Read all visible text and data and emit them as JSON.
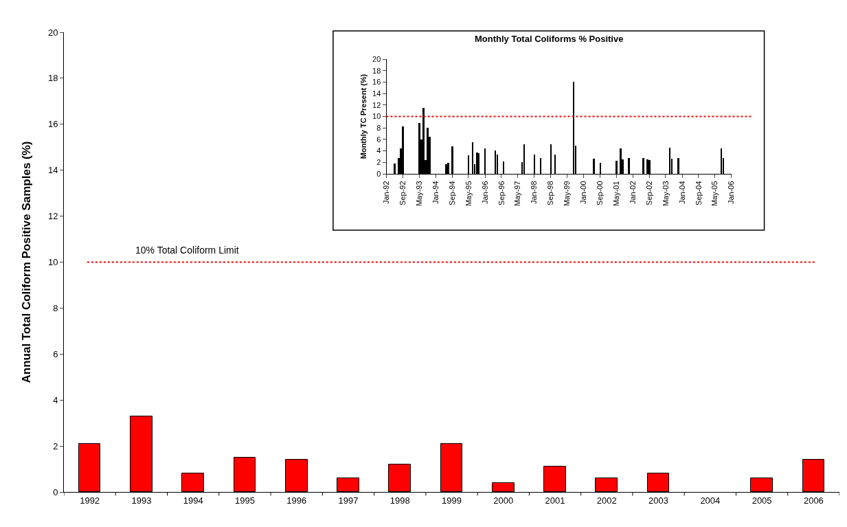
{
  "chart_data": [
    {
      "type": "bar",
      "ylabel": "Annual Total Coliform Positive Samples (%)",
      "categories": [
        "1992",
        "1993",
        "1994",
        "1995",
        "1996",
        "1997",
        "1998",
        "1999",
        "2000",
        "2001",
        "2002",
        "2003",
        "2004",
        "2005",
        "2006"
      ],
      "values": [
        2.1,
        3.3,
        0.8,
        1.5,
        1.4,
        0.6,
        1.2,
        2.1,
        0.4,
        1.1,
        0.6,
        0.8,
        null,
        0.6,
        1.4
      ],
      "color": "#ff0000",
      "ylim": [
        0,
        20
      ],
      "yticks": [
        0,
        2,
        4,
        6,
        8,
        10,
        12,
        14,
        16,
        18,
        20
      ],
      "ref_lines": [
        {
          "axis": "y",
          "value": 10,
          "label": "10% Total Coliform Limit",
          "color": "#ff0000",
          "line_style": "dotted"
        }
      ],
      "grid": false
    },
    {
      "type": "bar",
      "title": "Monthly Total Coliforms % Positive",
      "ylabel": "Monthly TC Present (%)",
      "x": [
        "1992-05",
        "1992-07",
        "1992-08",
        "1992-09",
        "1993-05",
        "1993-06",
        "1993-07",
        "1993-08",
        "1993-09",
        "1993-10",
        "1994-06",
        "1994-07",
        "1994-09",
        "1995-05",
        "1995-07",
        "1995-08",
        "1995-09",
        "1995-10",
        "1996-01",
        "1996-06",
        "1996-07",
        "1996-10",
        "1997-07",
        "1997-08",
        "1998-01",
        "1998-04",
        "1998-09",
        "1998-11",
        "1999-08",
        "1999-09",
        "2000-06",
        "2000-09",
        "2001-05",
        "2001-07",
        "2001-08",
        "2001-11",
        "2002-06",
        "2002-08",
        "2002-09",
        "2003-07",
        "2003-08",
        "2003-11",
        "2005-08",
        "2005-09"
      ],
      "values": [
        1.8,
        2.7,
        4.4,
        8.3,
        8.9,
        6.0,
        11.5,
        2.4,
        8.0,
        6.5,
        1.7,
        1.9,
        4.8,
        3.2,
        5.5,
        1.7,
        3.7,
        3.6,
        4.4,
        4.1,
        3.4,
        2.1,
        2.0,
        5.1,
        3.4,
        2.8,
        5.1,
        3.4,
        16.1,
        4.9,
        2.6,
        1.9,
        2.3,
        4.4,
        2.5,
        2.8,
        2.8,
        2.5,
        2.4,
        4.5,
        2.6,
        2.7,
        4.4,
        2.7
      ],
      "color": "#000000",
      "xlim": [
        "1992-01",
        "2006-01"
      ],
      "xticks": [
        {
          "value": "1992-01",
          "label": "Jan-92"
        },
        {
          "value": "1992-09",
          "label": "Sep-92"
        },
        {
          "value": "1993-05",
          "label": "May-93"
        },
        {
          "value": "1994-01",
          "label": "Jan-94"
        },
        {
          "value": "1994-09",
          "label": "Sep-94"
        },
        {
          "value": "1995-05",
          "label": "May-95"
        },
        {
          "value": "1996-01",
          "label": "Jan-96"
        },
        {
          "value": "1996-09",
          "label": "Sep-96"
        },
        {
          "value": "1997-05",
          "label": "May-97"
        },
        {
          "value": "1998-01",
          "label": "Jan-98"
        },
        {
          "value": "1998-09",
          "label": "Sep-98"
        },
        {
          "value": "1999-05",
          "label": "May-99"
        },
        {
          "value": "2000-01",
          "label": "Jan-00"
        },
        {
          "value": "2000-09",
          "label": "Sep-00"
        },
        {
          "value": "2001-05",
          "label": "May-01"
        },
        {
          "value": "2002-01",
          "label": "Jan-02"
        },
        {
          "value": "2002-09",
          "label": "Sep-02"
        },
        {
          "value": "2003-05",
          "label": "May-03"
        },
        {
          "value": "2004-01",
          "label": "Jan-04"
        },
        {
          "value": "2004-09",
          "label": "Sep-04"
        },
        {
          "value": "2005-05",
          "label": "May-05"
        },
        {
          "value": "2006-01",
          "label": "Jan-06"
        }
      ],
      "ylim": [
        0,
        20
      ],
      "yticks": [
        0,
        2,
        4,
        6,
        8,
        10,
        12,
        14,
        16,
        18,
        20
      ],
      "ref_lines": [
        {
          "axis": "y",
          "value": 10,
          "color": "#ff0000",
          "line_style": "dotted"
        }
      ],
      "grid": false
    }
  ]
}
